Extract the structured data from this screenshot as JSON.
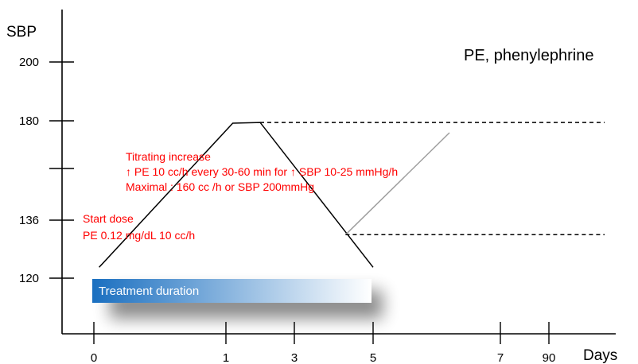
{
  "colors": {
    "axis": "#000000",
    "annotation": "#ff0000",
    "bar_start": "#1a6fc0",
    "bar_end": "#ffffff",
    "rise_line": "#000000",
    "alt_line": "#9e9e9e"
  },
  "labels": {
    "y_title": "SBP",
    "x_title": "Days",
    "legend_note": "PE, phenylephrine",
    "bar_label": "Treatment duration"
  },
  "annotations": {
    "start": [
      "Start dose",
      "PE 0.12 mg/dL 10 cc/h"
    ],
    "titrate": [
      "Titrating increase",
      "↑ PE 10 cc/h every  30-60 min for ↑ SBP 10-25 mmHg/h",
      "Maximal : 160 cc /h or SBP  200mmHg"
    ]
  },
  "chart_data": {
    "type": "line",
    "y_ticks": [
      {
        "value": 200,
        "label": "200"
      },
      {
        "value": 180,
        "label": "180"
      },
      {
        "value": 160,
        "label": ""
      },
      {
        "value": 136,
        "label": "136"
      },
      {
        "value": 120,
        "label": "120"
      }
    ],
    "x_ticks": [
      {
        "pos": 0,
        "label": "0"
      },
      {
        "pos": 1,
        "label": "1"
      },
      {
        "pos": 2,
        "label": "3"
      },
      {
        "pos": 3,
        "label": "5"
      },
      {
        "pos": 4,
        "label": "7"
      },
      {
        "pos": 4.4,
        "label": "90"
      }
    ],
    "ylim": [
      110,
      210
    ],
    "xlim": [
      -0.2,
      5.1
    ],
    "treatment_bar": {
      "from": 0,
      "to": 3
    },
    "series": [
      {
        "values": [
          [
            0.04,
            123
          ],
          [
            1.1,
            179
          ],
          [
            1.5,
            179.3
          ],
          [
            3.0,
            123
          ]
        ],
        "style": "solid",
        "role": "main"
      },
      {
        "values": [
          [
            1.5,
            179.3
          ],
          [
            5.0,
            179.3
          ]
        ],
        "style": "dashed",
        "role": "upper"
      },
      {
        "values": [
          [
            2.65,
            132
          ],
          [
            3.6,
            175
          ]
        ],
        "style": "solid",
        "role": "alt"
      },
      {
        "values": [
          [
            2.65,
            132
          ],
          [
            5.0,
            132
          ]
        ],
        "style": "dashed",
        "role": "lower"
      }
    ]
  }
}
